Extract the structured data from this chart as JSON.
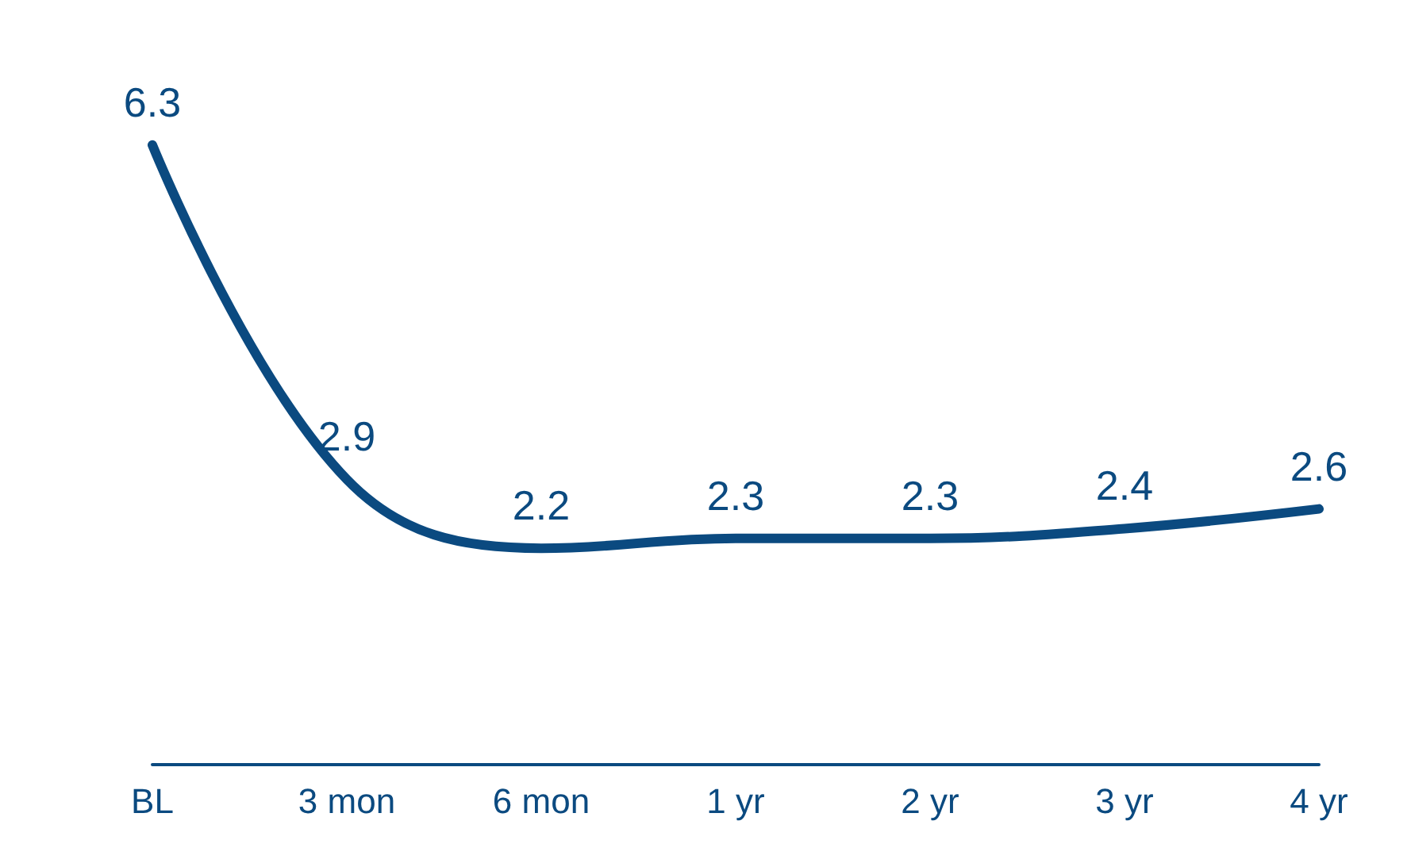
{
  "chart_data": {
    "type": "line",
    "categories": [
      "BL",
      "3 mon",
      "6 mon",
      "1 yr",
      "2 yr",
      "3 yr",
      "4 yr"
    ],
    "series": [
      {
        "color": "#0b4a80",
        "values": [
          6.3,
          2.9,
          2.2,
          2.3,
          2.3,
          2.4,
          2.6
        ]
      }
    ],
    "data_labels": true,
    "marker": "none",
    "line_style": "solid"
  }
}
